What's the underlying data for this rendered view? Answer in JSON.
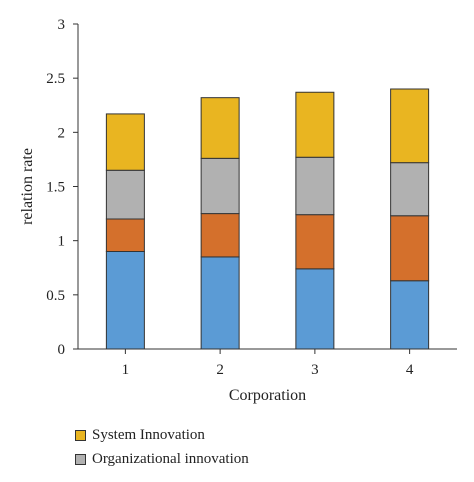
{
  "chart_data": {
    "type": "bar",
    "stacked": true,
    "categories": [
      "1",
      "2",
      "3",
      "4"
    ],
    "series": [
      {
        "name": "",
        "color": "#5b9bd5",
        "values": [
          0.9,
          0.85,
          0.74,
          0.63
        ]
      },
      {
        "name": "",
        "color": "#d4702c",
        "values": [
          0.3,
          0.4,
          0.5,
          0.6
        ]
      },
      {
        "name": "Organizational innovation",
        "color": "#b1b1b1",
        "values": [
          0.45,
          0.51,
          0.53,
          0.49
        ]
      },
      {
        "name": "System Innovation",
        "color": "#e9b521",
        "values": [
          0.52,
          0.56,
          0.6,
          0.68
        ]
      }
    ],
    "xlabel": "Corporation",
    "ylabel": "relation rate",
    "ylim": [
      0,
      3
    ],
    "yticks": [
      "0",
      "0.5",
      "1",
      "1.5",
      "2",
      "2.5",
      "3"
    ],
    "grid": false,
    "legend_position": "bottom-left"
  },
  "legend": {
    "items": [
      {
        "label": "System Innovation",
        "color": "#e9b521"
      },
      {
        "label": "Organizational innovation",
        "color": "#b1b1b1"
      }
    ]
  }
}
